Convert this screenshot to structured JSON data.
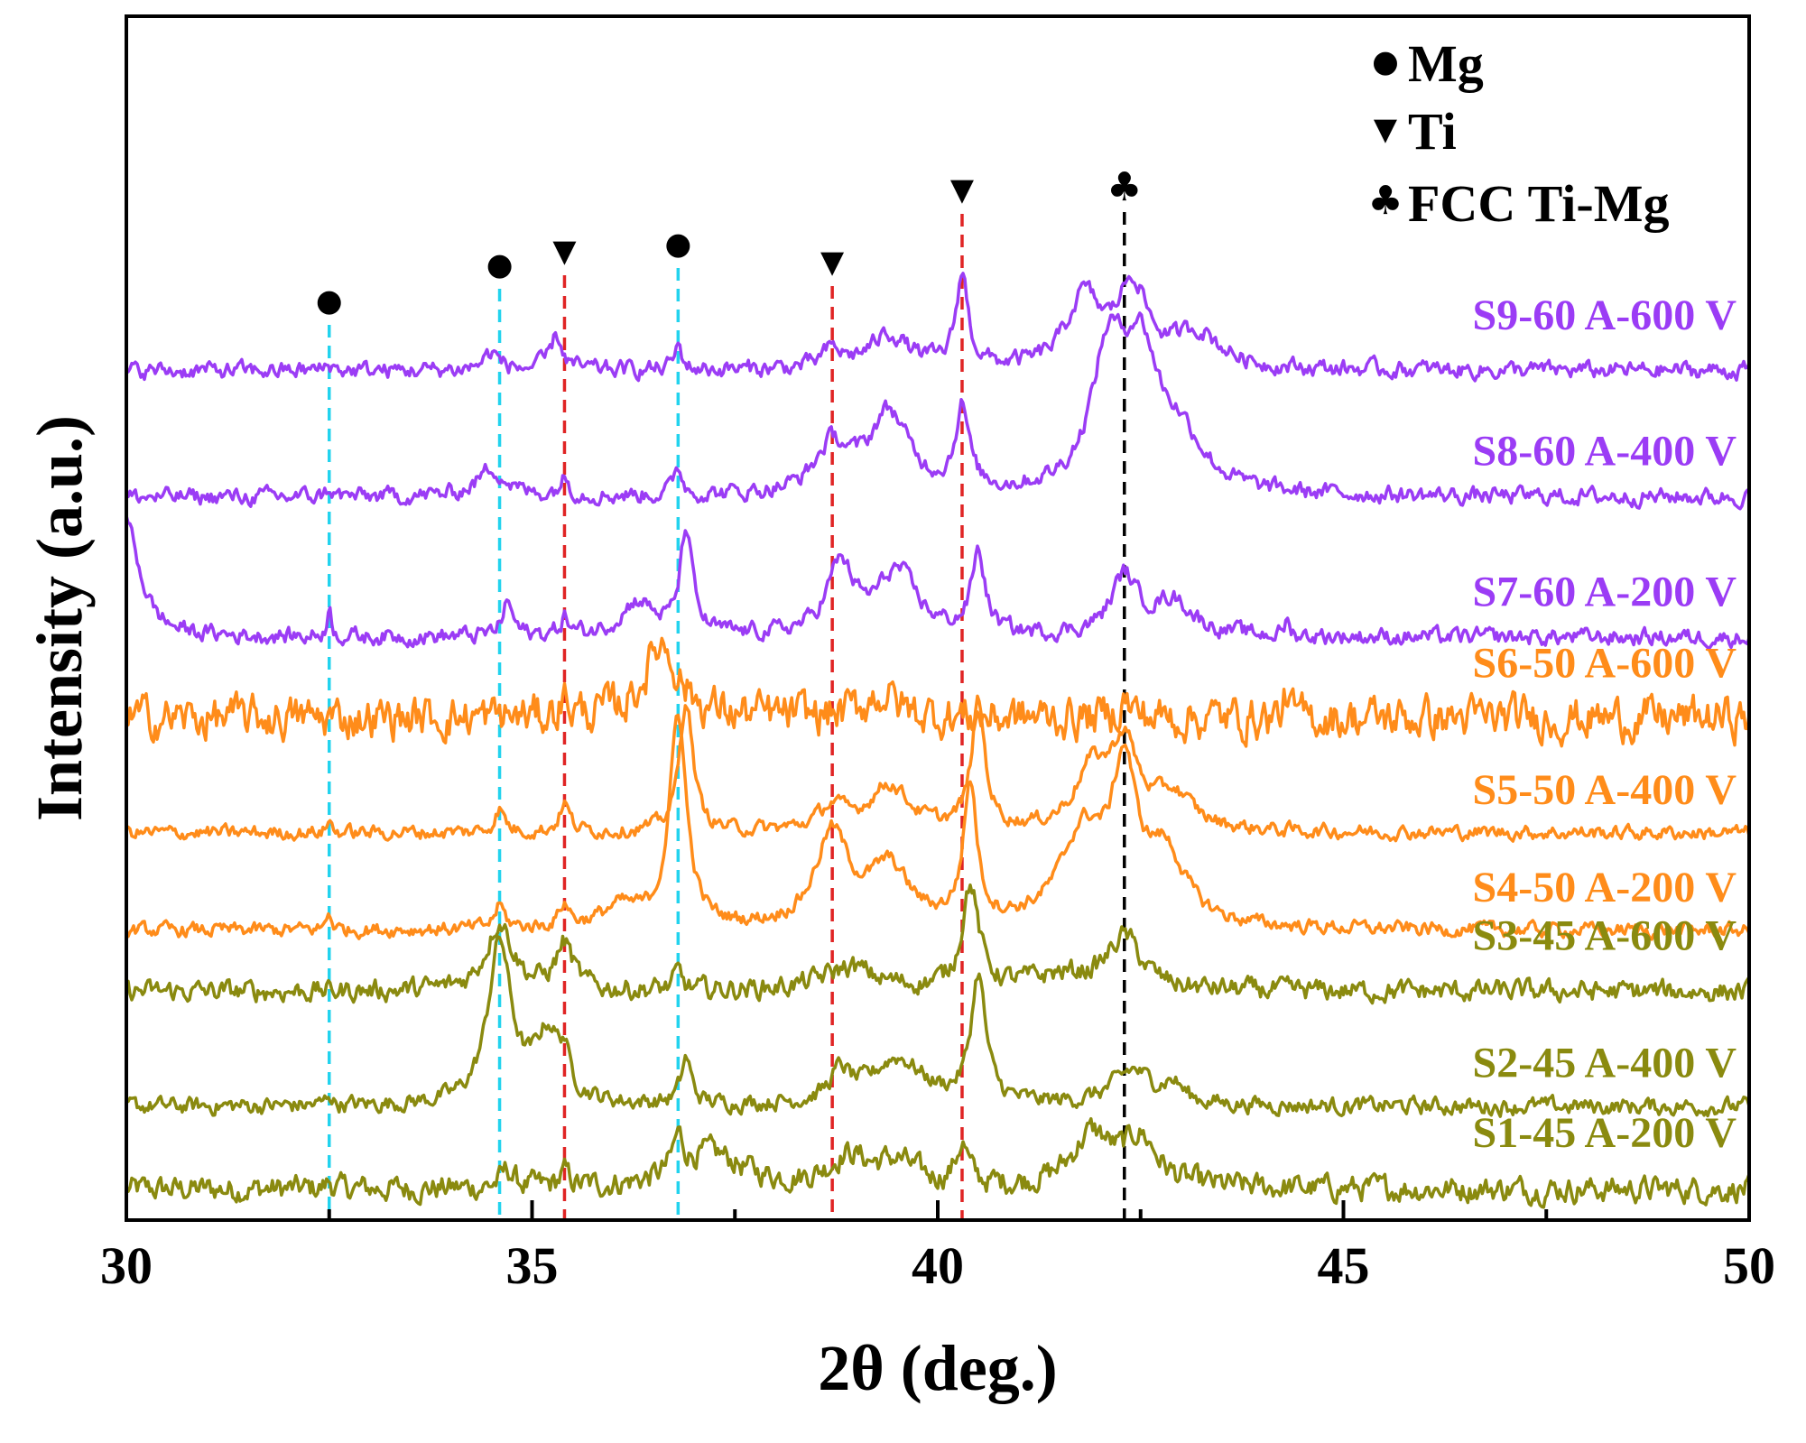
{
  "chart_data": {
    "type": "line",
    "xlabel": "2θ (deg.)",
    "ylabel": "Intensity (a.u.)",
    "xlim": [
      30,
      50
    ],
    "xticks": [
      {
        "value": 30,
        "label": "30"
      },
      {
        "value": 35,
        "label": "35"
      },
      {
        "value": 40,
        "label": "40"
      },
      {
        "value": 45,
        "label": "45"
      },
      {
        "value": 50,
        "label": "50"
      }
    ],
    "minor_ticks": [
      32.5,
      37.5,
      42.5,
      47.5
    ],
    "legend": {
      "placement": "top-right",
      "items": [
        {
          "marker": "●",
          "label": "Mg"
        },
        {
          "marker": "▼",
          "label": "Ti"
        },
        {
          "marker": "♣",
          "label": "FCC Ti-Mg"
        }
      ]
    },
    "reference_lines": [
      {
        "x": 32.5,
        "phase": "Mg",
        "color": "#22d3ee",
        "marker": "●"
      },
      {
        "x": 34.6,
        "phase": "Mg",
        "color": "#22d3ee",
        "marker": "●"
      },
      {
        "x": 35.4,
        "phase": "Ti",
        "color": "#e02424",
        "marker": "▼"
      },
      {
        "x": 36.8,
        "phase": "Mg",
        "color": "#22d3ee",
        "marker": "●"
      },
      {
        "x": 38.7,
        "phase": "Ti",
        "color": "#e02424",
        "marker": "▼"
      },
      {
        "x": 40.3,
        "phase": "Ti",
        "color": "#e02424",
        "marker": "▼"
      },
      {
        "x": 42.3,
        "phase": "FCC Ti-Mg",
        "color": "#000000",
        "marker": "♣"
      }
    ],
    "series": [
      {
        "name": "S1-45 A-200 V",
        "color": "#8a8a0f",
        "baseline": 0.0,
        "noise": 0.018,
        "peaks": [
          [
            32.5,
            0.006,
            0.1
          ],
          [
            34.7,
            0.015,
            0.2
          ],
          [
            35.4,
            0.012,
            0.15
          ],
          [
            36.8,
            0.03,
            0.15
          ],
          [
            37.2,
            0.03,
            1.0
          ],
          [
            38.9,
            0.025,
            0.6
          ],
          [
            39.5,
            0.02,
            0.6
          ],
          [
            40.3,
            0.035,
            0.18
          ],
          [
            41.9,
            0.045,
            0.6
          ],
          [
            42.5,
            0.04,
            0.5
          ]
        ]
      },
      {
        "name": "S2-45 A-400 V",
        "color": "#8a8a0f",
        "baseline": 0.072,
        "noise": 0.012,
        "peaks": [
          [
            32.5,
            0.01,
            0.08
          ],
          [
            34.6,
            0.14,
            0.35
          ],
          [
            35.2,
            0.06,
            0.4
          ],
          [
            35.4,
            0.025,
            0.12
          ],
          [
            36.9,
            0.04,
            0.15
          ],
          [
            38.8,
            0.025,
            0.3
          ],
          [
            39.5,
            0.04,
            0.8
          ],
          [
            40.5,
            0.11,
            0.22
          ],
          [
            42.4,
            0.03,
            0.6
          ],
          [
            42.9,
            0.015,
            0.3
          ]
        ]
      },
      {
        "name": "S3-45 A-600 V",
        "color": "#8a8a0f",
        "baseline": 0.172,
        "noise": 0.015,
        "peaks": [
          [
            34.6,
            0.06,
            0.4
          ],
          [
            35.4,
            0.04,
            0.25
          ],
          [
            36.8,
            0.015,
            0.12
          ],
          [
            38.9,
            0.02,
            0.8
          ],
          [
            40.4,
            0.09,
            0.25
          ],
          [
            42.3,
            0.045,
            0.5
          ],
          [
            41.5,
            0.012,
            1.0
          ]
        ]
      },
      {
        "name": "S4-50 A-200 V",
        "color": "#ff8c1a",
        "baseline": 0.225,
        "noise": 0.01,
        "peaks": [
          [
            32.5,
            0.015,
            0.08
          ],
          [
            34.6,
            0.02,
            0.15
          ],
          [
            35.4,
            0.02,
            0.15
          ],
          [
            36.1,
            0.018,
            0.6
          ],
          [
            36.8,
            0.185,
            0.25
          ],
          [
            38.7,
            0.08,
            0.5
          ],
          [
            39.4,
            0.05,
            0.6
          ],
          [
            40.4,
            0.12,
            0.2
          ],
          [
            41.8,
            0.08,
            0.7
          ],
          [
            42.3,
            0.12,
            0.35
          ],
          [
            42.8,
            0.06,
            0.6
          ]
        ]
      },
      {
        "name": "S5-50 A-400 V",
        "color": "#ff8c1a",
        "baseline": 0.31,
        "noise": 0.01,
        "peaks": [
          [
            32.5,
            0.01,
            0.08
          ],
          [
            34.6,
            0.02,
            0.15
          ],
          [
            35.4,
            0.025,
            0.15
          ],
          [
            36.9,
            0.115,
            0.2
          ],
          [
            38.7,
            0.02,
            0.4
          ],
          [
            39.4,
            0.04,
            0.6
          ],
          [
            40.5,
            0.11,
            0.2
          ],
          [
            41.9,
            0.05,
            0.5
          ],
          [
            42.3,
            0.07,
            0.4
          ],
          [
            42.9,
            0.03,
            0.6
          ]
        ]
      },
      {
        "name": "S6-50 A-600 V",
        "color": "#ff8c1a",
        "baseline": 0.41,
        "noise": 0.03,
        "peaks": [
          [
            35.4,
            0.015,
            0.15
          ],
          [
            36.6,
            0.065,
            0.5
          ],
          [
            39.3,
            0.02,
            0.5
          ],
          [
            42.3,
            0.015,
            0.2
          ],
          [
            44.3,
            0.02,
            0.08
          ]
        ]
      },
      {
        "name": "S7-60 A-200 V",
        "color": "#9b3cf5",
        "baseline": 0.48,
        "noise": 0.012,
        "peaks": [
          [
            30.0,
            0.1,
            0.4
          ],
          [
            32.5,
            0.022,
            0.08
          ],
          [
            34.7,
            0.03,
            0.15
          ],
          [
            35.4,
            0.015,
            0.12
          ],
          [
            36.3,
            0.03,
            0.5
          ],
          [
            36.9,
            0.09,
            0.18
          ],
          [
            38.8,
            0.06,
            0.4
          ],
          [
            39.5,
            0.055,
            0.6
          ],
          [
            40.5,
            0.07,
            0.2
          ],
          [
            42.3,
            0.05,
            0.4
          ],
          [
            42.9,
            0.03,
            0.6
          ],
          [
            44.3,
            0.012,
            0.08
          ]
        ]
      },
      {
        "name": "S8-60 A-400 V",
        "color": "#9b3cf5",
        "baseline": 0.602,
        "noise": 0.012,
        "peaks": [
          [
            32.5,
            0.008,
            0.08
          ],
          [
            34.5,
            0.025,
            0.4
          ],
          [
            35.4,
            0.015,
            0.15
          ],
          [
            36.8,
            0.025,
            0.12
          ],
          [
            38.7,
            0.04,
            0.5
          ],
          [
            39.4,
            0.07,
            0.6
          ],
          [
            40.3,
            0.07,
            0.2
          ],
          [
            42.1,
            0.11,
            0.5
          ],
          [
            42.5,
            0.11,
            0.55
          ],
          [
            43.0,
            0.04,
            0.7
          ]
        ]
      },
      {
        "name": "S9-60 A-600 V",
        "color": "#9b3cf5",
        "baseline": 0.712,
        "noise": 0.012,
        "peaks": [
          [
            32.5,
            0.006,
            0.1
          ],
          [
            34.5,
            0.015,
            0.25
          ],
          [
            35.3,
            0.03,
            0.18
          ],
          [
            36.8,
            0.02,
            0.12
          ],
          [
            38.7,
            0.015,
            0.3
          ],
          [
            39.4,
            0.03,
            0.6
          ],
          [
            40.3,
            0.08,
            0.18
          ],
          [
            41.8,
            0.06,
            0.5
          ],
          [
            42.4,
            0.07,
            0.45
          ],
          [
            43.2,
            0.03,
            0.7
          ]
        ]
      }
    ]
  }
}
